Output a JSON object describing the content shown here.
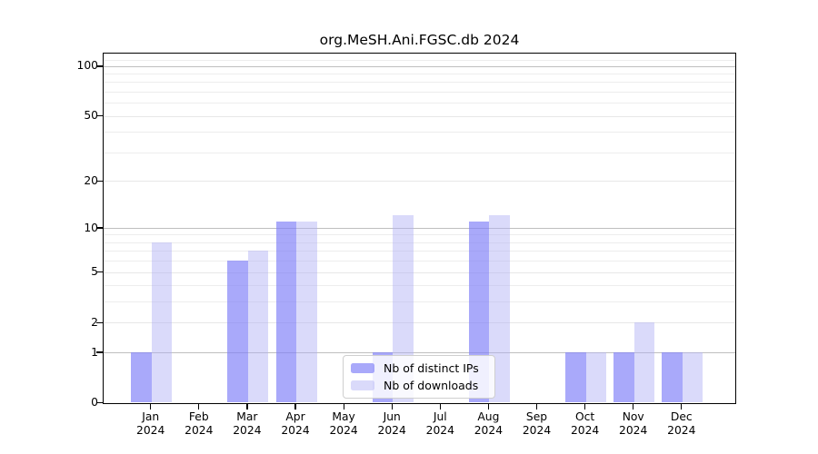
{
  "chart_data": {
    "type": "bar",
    "title": "org.MeSH.Ani.FGSC.db 2024",
    "categories": [
      "Jan",
      "Feb",
      "Mar",
      "Apr",
      "May",
      "Jun",
      "Jul",
      "Aug",
      "Sep",
      "Oct",
      "Nov",
      "Dec"
    ],
    "year_label": "2024",
    "series": [
      {
        "name": "Nb of distinct IPs",
        "values": [
          1,
          0,
          6,
          11,
          0,
          1,
          0,
          11,
          0,
          1,
          1,
          1
        ],
        "color": "rgba(127,127,248,0.67)"
      },
      {
        "name": "Nb of downloads",
        "values": [
          8,
          0,
          7,
          11,
          0,
          12,
          0,
          12,
          0,
          1,
          2,
          1
        ],
        "color": "rgba(173,173,244,0.45)"
      }
    ],
    "y_ticks": [
      0,
      1,
      2,
      5,
      10,
      20,
      50,
      100
    ],
    "y_minor_gridlines": [
      3,
      4,
      6,
      7,
      8,
      9,
      30,
      40,
      60,
      70,
      80,
      90,
      109
    ],
    "y_scale": "log10(value+1)",
    "ylim": [
      0,
      119
    ],
    "grid": true,
    "legend_position": "inside-bottom-center"
  },
  "colors": {
    "decade_gridline": "#bfbfbf",
    "major_gridline": "#e7e7e7",
    "minor_gridline": "#ededed",
    "axis": "#000000",
    "background": "#ffffff"
  }
}
